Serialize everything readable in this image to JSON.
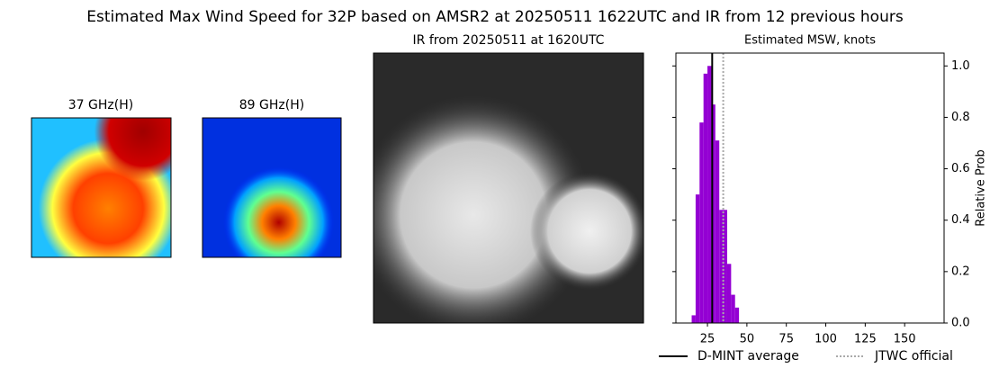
{
  "title": "Estimated Max Wind Speed for 32P based on AMSR2 at 20250511 1622UTC and IR from 12 previous hours",
  "panels": [
    {
      "title": "37 GHz(H)"
    },
    {
      "title": "89 GHz(H)"
    },
    {
      "title": "IR from 20250511 at 1620UTC"
    }
  ],
  "chart_data": {
    "type": "histogram",
    "title": "Estimated MSW, knots",
    "ylabel": "Relative Prob",
    "yaxis_side": "right",
    "bins": [
      15,
      17.5,
      20,
      22.5,
      25,
      27.5,
      30,
      32.5,
      35,
      37.5,
      40,
      42.5,
      45
    ],
    "values": [
      0.03,
      0.5,
      0.78,
      0.97,
      1.0,
      0.85,
      0.71,
      0.44,
      0.44,
      0.23,
      0.11,
      0.06
    ],
    "color": "#9400d3",
    "xlim": [
      5,
      175
    ],
    "xticks": [
      25,
      50,
      75,
      100,
      125,
      150
    ],
    "ylim": [
      0,
      1.05
    ],
    "yticks": [
      {
        "value": 0,
        "label": "0.0"
      },
      0.2,
      0.4,
      0.6,
      0.8,
      {
        "value": 1,
        "label": "1.0"
      }
    ],
    "lines": [
      {
        "name": "D-MINT average",
        "value": 28,
        "color": "#000000",
        "style": "solid"
      },
      {
        "name": "JTWC official",
        "value": 35,
        "color": "#aaaaaa",
        "style": "dotted"
      }
    ]
  }
}
